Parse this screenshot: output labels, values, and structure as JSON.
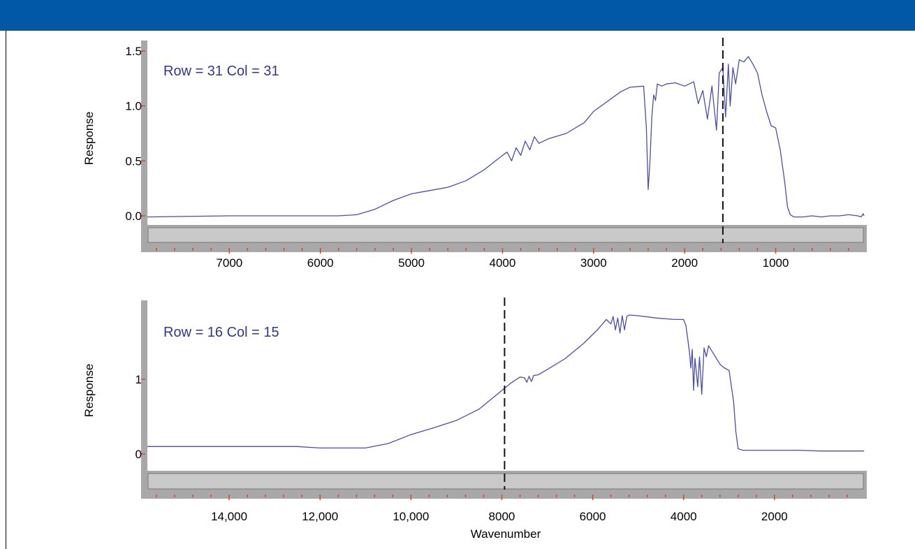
{
  "colors": {
    "header_bar": "#0058a6",
    "spectrum_line": "#4a4ea6",
    "annotation_text": "#33368f",
    "axis_gray": "#a8a8a8",
    "tick_orange": "#e0431c"
  },
  "chart_data": [
    {
      "type": "line",
      "annotation": "Row = 31 Col = 31",
      "ylabel": "Response",
      "xlabel": "",
      "x_reversed": true,
      "xlim": [
        7900,
        30
      ],
      "ylim": [
        -0.3,
        1.55
      ],
      "xticks": [
        7000,
        6000,
        5000,
        4000,
        3000,
        2000,
        1000
      ],
      "xtick_labels": [
        "7000",
        "6000",
        "5000",
        "4000",
        "3000",
        "2000",
        "1000"
      ],
      "yticks": [
        1.5,
        1.0,
        0.5,
        0.0
      ],
      "ytick_labels": [
        "1.5",
        "1.0",
        "0.5",
        "0.0"
      ],
      "marker_x": 1580,
      "series": [
        {
          "x": [
            7900,
            7000,
            6000,
            5800,
            5600,
            5400,
            5200,
            5000,
            4800,
            4600,
            4400,
            4200,
            4000,
            3950,
            3900,
            3850,
            3800,
            3750,
            3700,
            3650,
            3600,
            3500,
            3300,
            3100,
            3000,
            2800,
            2700,
            2600,
            2450,
            2420,
            2400,
            2380,
            2360,
            2340,
            2320,
            2300,
            2250,
            2200,
            2100,
            2000,
            1900,
            1850,
            1800,
            1750,
            1700,
            1650,
            1620,
            1580,
            1550,
            1520,
            1500,
            1470,
            1440,
            1400,
            1350,
            1300,
            1250,
            1200,
            1150,
            1100,
            1050,
            1000,
            950,
            900,
            870,
            840,
            800,
            700,
            600,
            500,
            400,
            300,
            200,
            100,
            60,
            40,
            30
          ],
          "y": [
            -0.01,
            0.0,
            0.0,
            0.0,
            0.01,
            0.06,
            0.14,
            0.2,
            0.23,
            0.26,
            0.32,
            0.42,
            0.55,
            0.58,
            0.5,
            0.62,
            0.55,
            0.68,
            0.6,
            0.72,
            0.66,
            0.7,
            0.75,
            0.85,
            0.95,
            1.07,
            1.13,
            1.17,
            1.18,
            0.8,
            0.24,
            0.5,
            0.9,
            1.1,
            1.05,
            1.2,
            1.18,
            1.2,
            1.21,
            1.18,
            1.22,
            1.02,
            1.14,
            0.88,
            1.18,
            0.78,
            1.3,
            1.35,
            0.9,
            1.38,
            1.0,
            1.35,
            1.2,
            1.42,
            1.4,
            1.45,
            1.38,
            1.3,
            1.1,
            0.95,
            0.82,
            0.8,
            0.6,
            0.3,
            0.08,
            0.01,
            -0.01,
            -0.01,
            0.0,
            -0.01,
            0.0,
            0.0,
            0.01,
            0.0,
            -0.01,
            0.02,
            0.0
          ]
        }
      ]
    },
    {
      "type": "line",
      "annotation": "Row = 16 Col = 15",
      "ylabel": "Response",
      "xlabel": "Wavenumber",
      "x_reversed": true,
      "xlim": [
        15800,
        30
      ],
      "ylim": [
        -0.5,
        1.92
      ],
      "xticks": [
        14000,
        12000,
        10000,
        8000,
        6000,
        4000,
        2000
      ],
      "xtick_labels": [
        "14,000",
        "12,000",
        "10,000",
        "8000",
        "6000",
        "4000",
        "2000"
      ],
      "yticks": [
        1,
        0
      ],
      "ytick_labels": [
        "1",
        "0"
      ],
      "marker_x": 7940,
      "series": [
        {
          "x": [
            15800,
            14000,
            12500,
            12000,
            11500,
            11000,
            10500,
            10000,
            9500,
            9000,
            8500,
            8000,
            7800,
            7600,
            7500,
            7450,
            7400,
            7350,
            7300,
            7200,
            7000,
            6600,
            6200,
            5900,
            5700,
            5600,
            5550,
            5500,
            5450,
            5400,
            5350,
            5300,
            5250,
            5200,
            5000,
            4600,
            4200,
            4000,
            3950,
            3900,
            3870,
            3840,
            3810,
            3780,
            3750,
            3720,
            3690,
            3650,
            3600,
            3550,
            3500,
            3450,
            3400,
            3300,
            3200,
            3100,
            3000,
            2900,
            2850,
            2800,
            2700,
            2500,
            2000,
            1500,
            1000,
            500,
            100,
            30
          ],
          "y": [
            0.1,
            0.1,
            0.1,
            0.08,
            0.08,
            0.08,
            0.14,
            0.26,
            0.35,
            0.45,
            0.6,
            0.85,
            0.95,
            1.03,
            1.02,
            0.96,
            1.04,
            0.97,
            1.05,
            1.06,
            1.13,
            1.28,
            1.48,
            1.66,
            1.8,
            1.74,
            1.84,
            1.66,
            1.82,
            1.62,
            1.85,
            1.66,
            1.84,
            1.86,
            1.85,
            1.82,
            1.8,
            1.8,
            1.72,
            1.5,
            1.35,
            1.15,
            1.4,
            0.85,
            1.28,
            1.1,
            0.9,
            1.3,
            0.8,
            1.42,
            1.3,
            1.45,
            1.4,
            1.3,
            1.2,
            1.15,
            1.12,
            0.7,
            0.3,
            0.07,
            0.05,
            0.05,
            0.05,
            0.05,
            0.04,
            0.04,
            0.04,
            0.04
          ]
        }
      ]
    }
  ]
}
